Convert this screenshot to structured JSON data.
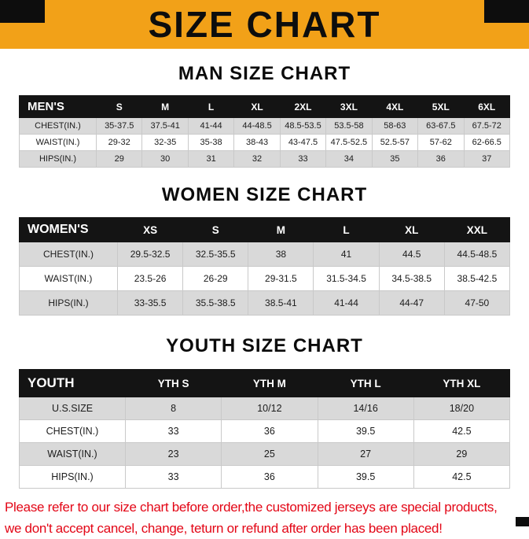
{
  "title": "SIZE CHART",
  "colors": {
    "banner_orange": "#F2A118",
    "header_black": "#141414",
    "row_gray": "#D9D9D9",
    "footer_red": "#E30616"
  },
  "chart_data": [
    {
      "type": "table",
      "title": "MAN SIZE CHART",
      "columns": [
        "MEN'S",
        "S",
        "M",
        "L",
        "XL",
        "2XL",
        "3XL",
        "4XL",
        "5XL",
        "6XL"
      ],
      "rows": [
        [
          "CHEST(IN.)",
          "35-37.5",
          "37.5-41",
          "41-44",
          "44-48.5",
          "48.5-53.5",
          "53.5-58",
          "58-63",
          "63-67.5",
          "67.5-72"
        ],
        [
          "WAIST(IN.)",
          "29-32",
          "32-35",
          "35-38",
          "38-43",
          "43-47.5",
          "47.5-52.5",
          "52.5-57",
          "57-62",
          "62-66.5"
        ],
        [
          "HIPS(IN.)",
          "29",
          "30",
          "31",
          "32",
          "33",
          "34",
          "35",
          "36",
          "37"
        ]
      ]
    },
    {
      "type": "table",
      "title": "WOMEN SIZE CHART",
      "columns": [
        "WOMEN'S",
        "XS",
        "S",
        "M",
        "L",
        "XL",
        "XXL"
      ],
      "rows": [
        [
          "CHEST(IN.)",
          "29.5-32.5",
          "32.5-35.5",
          "38",
          "41",
          "44.5",
          "44.5-48.5"
        ],
        [
          "WAIST(IN.)",
          "23.5-26",
          "26-29",
          "29-31.5",
          "31.5-34.5",
          "34.5-38.5",
          "38.5-42.5"
        ],
        [
          "HIPS(IN.)",
          "33-35.5",
          "35.5-38.5",
          "38.5-41",
          "41-44",
          "44-47",
          "47-50"
        ]
      ]
    },
    {
      "type": "table",
      "title": "YOUTH SIZE CHART",
      "columns": [
        "YOUTH",
        "YTH S",
        "YTH M",
        "YTH L",
        "YTH XL"
      ],
      "rows": [
        [
          "U.S.SIZE",
          "8",
          "10/12",
          "14/16",
          "18/20"
        ],
        [
          "CHEST(IN.)",
          "33",
          "36",
          "39.5",
          "42.5"
        ],
        [
          "WAIST(IN.)",
          "23",
          "25",
          "27",
          "29"
        ],
        [
          "HIPS(IN.)",
          "33",
          "36",
          "39.5",
          "42.5"
        ]
      ]
    }
  ],
  "footer": {
    "line1": "Please refer to our size chart before order,the customized jerseys are special products,",
    "line2": "we don't accept cancel, change, teturn or refund after order has been placed!"
  }
}
